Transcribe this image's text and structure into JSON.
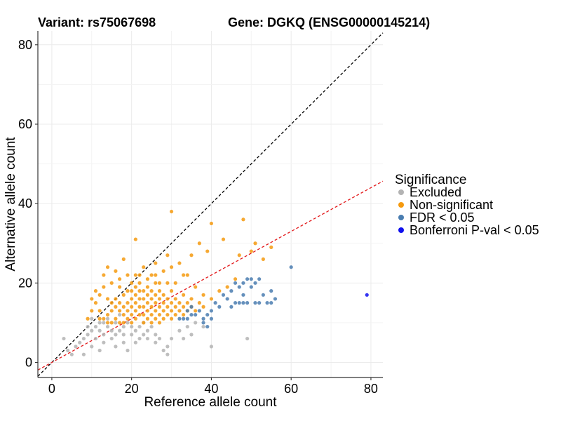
{
  "chart_data": {
    "type": "scatter",
    "title_variant": "Variant: rs75067698",
    "title_gene": "Gene: DGKQ (ENSG00000145214)",
    "xlabel": "Reference allele count",
    "ylabel": "Alternative allele count",
    "xlim": [
      -3.5,
      83
    ],
    "ylim": [
      -3.8,
      83.5
    ],
    "x_ticks": [
      0,
      20,
      40,
      60,
      80
    ],
    "y_ticks": [
      0,
      20,
      40,
      60,
      80
    ],
    "grid": true,
    "legend": {
      "position": "right",
      "title": "Significance",
      "entries": [
        {
          "key": "excluded",
          "label": "Excluded",
          "color": "#b3b3b3"
        },
        {
          "key": "nonsig",
          "label": "Non-significant",
          "color": "#f59a0f"
        },
        {
          "key": "fdr",
          "label": "FDR < 0.05",
          "color": "#4a7db0"
        },
        {
          "key": "bonf",
          "label": "Bonferroni P-val < 0.05",
          "color": "#1010ee"
        }
      ]
    },
    "reference_lines": [
      {
        "name": "identity",
        "slope": 1,
        "intercept": 0,
        "color": "#000000",
        "dash": "4,3"
      },
      {
        "name": "fit",
        "slope": 0.55,
        "intercept": 0,
        "color": "#e31a1c",
        "dash": "4,3"
      }
    ],
    "series": [
      {
        "name": "Excluded",
        "color": "#b3b3b3",
        "points": [
          [
            3,
            6
          ],
          [
            4,
            3
          ],
          [
            5,
            2
          ],
          [
            6,
            4
          ],
          [
            7,
            5
          ],
          [
            8,
            2
          ],
          [
            8,
            6
          ],
          [
            9,
            7
          ],
          [
            9,
            9
          ],
          [
            10,
            4
          ],
          [
            10,
            8
          ],
          [
            10,
            11
          ],
          [
            11,
            6
          ],
          [
            11,
            9
          ],
          [
            12,
            3
          ],
          [
            12,
            8
          ],
          [
            12,
            10
          ],
          [
            13,
            5
          ],
          [
            13,
            7
          ],
          [
            13,
            10
          ],
          [
            14,
            9
          ],
          [
            14,
            11
          ],
          [
            15,
            6
          ],
          [
            15,
            8
          ],
          [
            16,
            4
          ],
          [
            16,
            7
          ],
          [
            16,
            10
          ],
          [
            17,
            8
          ],
          [
            17,
            12
          ],
          [
            18,
            5
          ],
          [
            18,
            7
          ],
          [
            18,
            9
          ],
          [
            19,
            3
          ],
          [
            19,
            10
          ],
          [
            20,
            7
          ],
          [
            20,
            9
          ],
          [
            21,
            5
          ],
          [
            21,
            8
          ],
          [
            22,
            6
          ],
          [
            22,
            9
          ],
          [
            23,
            7
          ],
          [
            23,
            10
          ],
          [
            24,
            6
          ],
          [
            24,
            8
          ],
          [
            25,
            9
          ],
          [
            26,
            5
          ],
          [
            26,
            7
          ],
          [
            27,
            6
          ],
          [
            28,
            3
          ],
          [
            29,
            4
          ],
          [
            29,
            2
          ],
          [
            30,
            6
          ],
          [
            32,
            8
          ],
          [
            33,
            6
          ],
          [
            34,
            9
          ],
          [
            35,
            7
          ],
          [
            36,
            10
          ],
          [
            38,
            9
          ],
          [
            40,
            4
          ],
          [
            49,
            6
          ]
        ]
      },
      {
        "name": "Non-significant",
        "color": "#f59a0f",
        "points": [
          [
            21,
            31
          ],
          [
            30,
            38
          ],
          [
            40,
            35
          ],
          [
            43,
            31
          ],
          [
            48,
            36
          ],
          [
            50,
            28
          ],
          [
            51,
            30
          ],
          [
            55,
            29
          ],
          [
            53,
            26
          ],
          [
            47,
            27
          ],
          [
            39,
            28
          ],
          [
            37,
            30
          ],
          [
            35,
            27
          ],
          [
            33,
            22
          ],
          [
            32,
            25
          ],
          [
            30,
            24
          ],
          [
            29,
            27
          ],
          [
            28,
            23
          ],
          [
            26,
            25
          ],
          [
            25,
            22
          ],
          [
            24,
            21
          ],
          [
            23,
            24
          ],
          [
            22,
            20
          ],
          [
            21,
            22
          ],
          [
            20,
            18
          ],
          [
            19,
            22
          ],
          [
            18,
            26
          ],
          [
            17,
            19
          ],
          [
            16,
            23
          ],
          [
            15,
            20
          ],
          [
            14,
            24
          ],
          [
            13,
            19
          ],
          [
            12,
            17
          ],
          [
            11,
            15
          ],
          [
            10,
            13
          ],
          [
            9,
            11
          ],
          [
            10,
            16
          ],
          [
            12,
            13
          ],
          [
            13,
            11
          ],
          [
            14,
            12
          ],
          [
            15,
            13
          ],
          [
            15,
            15
          ],
          [
            16,
            11
          ],
          [
            16,
            14
          ],
          [
            16,
            16
          ],
          [
            17,
            13
          ],
          [
            17,
            15
          ],
          [
            18,
            12
          ],
          [
            18,
            14
          ],
          [
            18,
            17
          ],
          [
            19,
            11
          ],
          [
            19,
            13
          ],
          [
            19,
            15
          ],
          [
            19,
            18
          ],
          [
            20,
            10
          ],
          [
            20,
            12
          ],
          [
            20,
            14
          ],
          [
            20,
            16
          ],
          [
            21,
            11
          ],
          [
            21,
            13
          ],
          [
            21,
            15
          ],
          [
            21,
            17
          ],
          [
            21,
            19
          ],
          [
            22,
            12
          ],
          [
            22,
            14
          ],
          [
            22,
            16
          ],
          [
            22,
            18
          ],
          [
            23,
            10
          ],
          [
            23,
            12
          ],
          [
            23,
            14
          ],
          [
            23,
            16
          ],
          [
            23,
            18
          ],
          [
            24,
            11
          ],
          [
            24,
            13
          ],
          [
            24,
            15
          ],
          [
            24,
            17
          ],
          [
            24,
            19
          ],
          [
            25,
            10
          ],
          [
            25,
            12
          ],
          [
            25,
            14
          ],
          [
            25,
            16
          ],
          [
            25,
            18
          ],
          [
            26,
            11
          ],
          [
            26,
            13
          ],
          [
            26,
            15
          ],
          [
            26,
            17
          ],
          [
            26,
            20
          ],
          [
            27,
            10
          ],
          [
            27,
            12
          ],
          [
            27,
            14
          ],
          [
            27,
            16
          ],
          [
            27,
            18
          ],
          [
            28,
            11
          ],
          [
            28,
            13
          ],
          [
            28,
            15
          ],
          [
            28,
            17
          ],
          [
            29,
            12
          ],
          [
            29,
            14
          ],
          [
            29,
            16
          ],
          [
            30,
            11
          ],
          [
            30,
            13
          ],
          [
            30,
            15
          ],
          [
            30,
            18
          ],
          [
            31,
            12
          ],
          [
            31,
            14
          ],
          [
            31,
            16
          ],
          [
            32,
            13
          ],
          [
            32,
            15
          ],
          [
            33,
            12
          ],
          [
            33,
            14
          ],
          [
            33,
            17
          ],
          [
            34,
            13
          ],
          [
            34,
            15
          ],
          [
            35,
            14
          ],
          [
            35,
            16
          ],
          [
            36,
            13
          ],
          [
            37,
            15
          ],
          [
            38,
            14
          ],
          [
            38,
            17
          ],
          [
            40,
            16
          ],
          [
            42,
            18
          ],
          [
            44,
            19
          ],
          [
            46,
            21
          ],
          [
            11,
            18
          ],
          [
            13,
            22
          ],
          [
            14,
            16
          ],
          [
            17,
            21
          ],
          [
            20,
            20
          ],
          [
            22,
            22
          ],
          [
            26,
            22
          ],
          [
            27,
            20
          ],
          [
            29,
            20
          ],
          [
            31,
            20
          ],
          [
            34,
            22
          ],
          [
            36,
            19
          ],
          [
            12,
            11
          ],
          [
            14,
            10
          ],
          [
            15,
            10
          ],
          [
            17,
            10
          ],
          [
            18,
            10
          ]
        ]
      },
      {
        "name": "FDR < 0.05",
        "color": "#4a7db0",
        "points": [
          [
            32,
            11
          ],
          [
            33,
            11
          ],
          [
            34,
            11
          ],
          [
            34,
            13
          ],
          [
            35,
            12
          ],
          [
            35,
            14
          ],
          [
            36,
            12
          ],
          [
            37,
            13
          ],
          [
            38,
            11
          ],
          [
            38,
            10
          ],
          [
            39,
            9
          ],
          [
            39,
            12
          ],
          [
            40,
            11
          ],
          [
            40,
            13
          ],
          [
            41,
            15
          ],
          [
            42,
            14
          ],
          [
            43,
            17
          ],
          [
            44,
            16
          ],
          [
            45,
            18
          ],
          [
            45,
            14
          ],
          [
            46,
            15
          ],
          [
            46,
            20
          ],
          [
            47,
            19
          ],
          [
            47,
            15
          ],
          [
            48,
            20
          ],
          [
            48,
            17
          ],
          [
            48,
            15
          ],
          [
            49,
            21
          ],
          [
            49,
            15
          ],
          [
            50,
            21
          ],
          [
            50,
            19
          ],
          [
            51,
            20
          ],
          [
            51,
            15
          ],
          [
            52,
            21
          ],
          [
            52,
            15
          ],
          [
            53,
            17
          ],
          [
            54,
            15
          ],
          [
            55,
            18
          ],
          [
            55,
            15
          ],
          [
            56,
            16
          ],
          [
            60,
            24
          ]
        ]
      },
      {
        "name": "Bonferroni P-val < 0.05",
        "color": "#1010ee",
        "points": [
          [
            79,
            17
          ]
        ]
      }
    ]
  }
}
